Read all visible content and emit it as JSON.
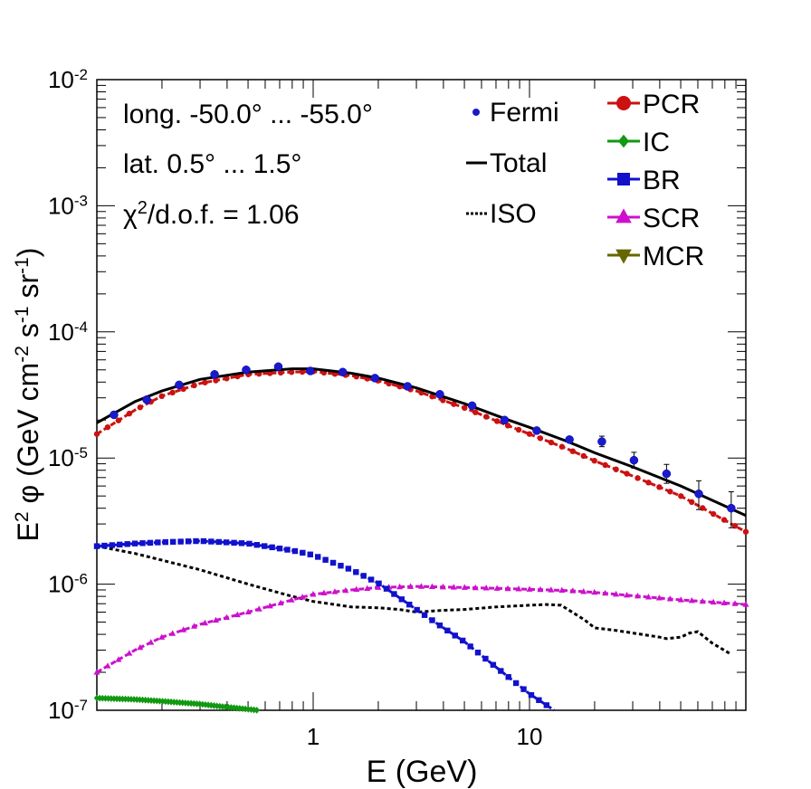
{
  "chart_data": {
    "type": "line",
    "xscale": "log",
    "yscale": "log",
    "xlim": [
      0.1,
      100
    ],
    "ylim": [
      1e-07,
      0.01
    ],
    "xlabel": "E (GeV)",
    "ylabel_parts": [
      "E",
      "2",
      " φ (GeV cm",
      "-2",
      " s",
      "-1",
      " sr",
      "-1",
      ")"
    ],
    "x_ticks": [
      {
        "value": 1,
        "label": "1"
      },
      {
        "value": 10,
        "label": "10"
      }
    ],
    "y_ticks": [
      {
        "value": 1e-07,
        "base": "10",
        "exp": "-7"
      },
      {
        "value": 1e-06,
        "base": "10",
        "exp": "-6"
      },
      {
        "value": 1e-05,
        "base": "10",
        "exp": "-5"
      },
      {
        "value": 0.0001,
        "base": "10",
        "exp": "-4"
      },
      {
        "value": 0.001,
        "base": "10",
        "exp": "-3"
      },
      {
        "value": 0.01,
        "base": "10",
        "exp": "-2"
      }
    ],
    "annotations": {
      "longitude": "long. -50.0° ... -55.0°",
      "latitude": "lat. 0.5° ... 1.5°",
      "chi2_symbol": "χ",
      "chi2_exp": "2",
      "chi2_rest": "/d.o.f. = 1.06"
    },
    "legend_left": [
      {
        "name": "Fermi",
        "style": "dot",
        "color": "#1a1acc"
      },
      {
        "name": "Total",
        "style": "line",
        "color": "#000000"
      },
      {
        "name": "ISO",
        "style": "dotted",
        "color": "#000000"
      }
    ],
    "legend_right": [
      {
        "name": "PCR",
        "marker": "circle",
        "color": "#cc1111"
      },
      {
        "name": "IC",
        "marker": "diamond",
        "color": "#119911"
      },
      {
        "name": "BR",
        "marker": "square",
        "color": "#1111cc"
      },
      {
        "name": "SCR",
        "marker": "triangle-up",
        "color": "#cc11cc"
      },
      {
        "name": "MCR",
        "marker": "triangle-down",
        "color": "#666600"
      }
    ],
    "fermi": {
      "x": [
        0.12,
        0.17,
        0.24,
        0.35,
        0.49,
        0.69,
        0.97,
        1.37,
        1.93,
        2.73,
        3.85,
        5.43,
        7.67,
        10.8,
        15.3,
        21.6,
        30.4,
        43.0,
        60.6,
        85.6
      ],
      "y": [
        2.2e-05,
        2.9e-05,
        3.8e-05,
        4.6e-05,
        5e-05,
        5.3e-05,
        4.9e-05,
        4.8e-05,
        4.3e-05,
        3.7e-05,
        3.2e-05,
        2.6e-05,
        2e-05,
        1.65e-05,
        1.4e-05,
        1.35e-05,
        9.6e-06,
        7.5e-06,
        5.2e-06,
        4e-06
      ],
      "err_lo": [
        0,
        0,
        0,
        0,
        0,
        0,
        0,
        0,
        0,
        0,
        0,
        0,
        0,
        0,
        0,
        1.2e-06,
        1.3e-06,
        1.2e-06,
        1.3e-06,
        1.2e-06
      ],
      "err_hi": [
        0,
        0,
        0,
        0,
        0,
        0,
        0,
        0,
        0,
        0,
        0,
        0,
        0,
        0,
        0,
        1.4e-06,
        1.5e-06,
        1.4e-06,
        1.4e-06,
        1.4e-06
      ]
    },
    "series": [
      {
        "name": "Total",
        "color": "#000000",
        "style": "solid",
        "x": [
          0.1,
          0.15,
          0.2,
          0.3,
          0.5,
          0.8,
          1.0,
          1.5,
          2.0,
          3.0,
          5.0,
          8.0,
          10,
          15,
          20,
          30,
          50,
          100
        ],
        "y": [
          1.9e-05,
          2.8e-05,
          3.4e-05,
          4.2e-05,
          4.8e-05,
          5.1e-05,
          5.1e-05,
          4.7e-05,
          4.3e-05,
          3.6e-05,
          2.7e-05,
          2e-05,
          1.75e-05,
          1.35e-05,
          1.1e-05,
          8.5e-06,
          6e-06,
          3.5e-06
        ]
      },
      {
        "name": "PCR",
        "color": "#cc1111",
        "style": "dashed",
        "marker": "circle",
        "x": [
          0.1,
          0.15,
          0.2,
          0.3,
          0.5,
          0.8,
          1.0,
          1.5,
          2.0,
          3.0,
          5.0,
          8.0,
          10,
          15,
          20,
          30,
          50,
          100
        ],
        "y": [
          1.55e-05,
          2.4e-05,
          3.1e-05,
          3.9e-05,
          4.6e-05,
          4.8e-05,
          4.85e-05,
          4.5e-05,
          4.1e-05,
          3.4e-05,
          2.5e-05,
          1.8e-05,
          1.55e-05,
          1.18e-05,
          9.5e-06,
          7.2e-06,
          5e-06,
          2.6e-06
        ]
      },
      {
        "name": "BR",
        "color": "#1111cc",
        "style": "dashed",
        "marker": "square",
        "x": [
          0.1,
          0.15,
          0.2,
          0.3,
          0.5,
          0.8,
          1.0,
          1.5,
          2.0,
          3.0,
          4.0,
          5.0,
          7.0,
          10,
          13
        ],
        "y": [
          2e-06,
          2.1e-06,
          2.15e-06,
          2.2e-06,
          2.1e-06,
          1.85e-06,
          1.7e-06,
          1.3e-06,
          1.02e-06,
          6.3e-07,
          4.5e-07,
          3.5e-07,
          2.2e-07,
          1.35e-07,
          1e-07
        ]
      },
      {
        "name": "SCR",
        "color": "#cc11cc",
        "style": "dashed",
        "marker": "triangle-up",
        "x": [
          0.1,
          0.15,
          0.2,
          0.3,
          0.5,
          0.8,
          1.0,
          1.5,
          2.0,
          3.0,
          5.0,
          8.0,
          10,
          15,
          20,
          30,
          50,
          100
        ],
        "y": [
          2e-07,
          3e-07,
          3.8e-07,
          4.8e-07,
          6e-07,
          7.5e-07,
          8.3e-07,
          9e-07,
          9.4e-07,
          9.6e-07,
          9.4e-07,
          9.2e-07,
          9.1e-07,
          8.9e-07,
          8.6e-07,
          8.1e-07,
          7.5e-07,
          6.9e-07
        ]
      },
      {
        "name": "IC",
        "color": "#119911",
        "style": "dashed",
        "marker": "diamond",
        "x": [
          0.1,
          0.15,
          0.2,
          0.3,
          0.4,
          0.5,
          0.62
        ],
        "y": [
          1.25e-07,
          1.22e-07,
          1.18e-07,
          1.12e-07,
          1.06e-07,
          1.02e-07,
          9.8e-08
        ]
      },
      {
        "name": "ISO",
        "color": "#000000",
        "style": "dotted",
        "x": [
          0.1,
          0.15,
          0.2,
          0.3,
          0.5,
          0.8,
          1.0,
          1.5,
          2.0,
          2.5,
          3.0,
          4.0,
          5.0,
          7.0,
          10,
          12,
          14,
          18,
          20,
          25,
          30,
          40,
          43,
          50,
          55,
          60,
          70,
          85
        ],
        "y": [
          2e-06,
          1.75e-06,
          1.55e-06,
          1.3e-06,
          1e-06,
          8e-07,
          7.3e-07,
          6.6e-07,
          6.5e-07,
          6.3e-07,
          6e-07,
          6.2e-07,
          6.3e-07,
          6.6e-07,
          6.8e-07,
          6.9e-07,
          6.8e-07,
          5.2e-07,
          4.5e-07,
          4.3e-07,
          4.1e-07,
          3.8e-07,
          3.7e-07,
          3.8e-07,
          4.1e-07,
          4.2e-07,
          3.4e-07,
          2.8e-07
        ]
      }
    ]
  }
}
